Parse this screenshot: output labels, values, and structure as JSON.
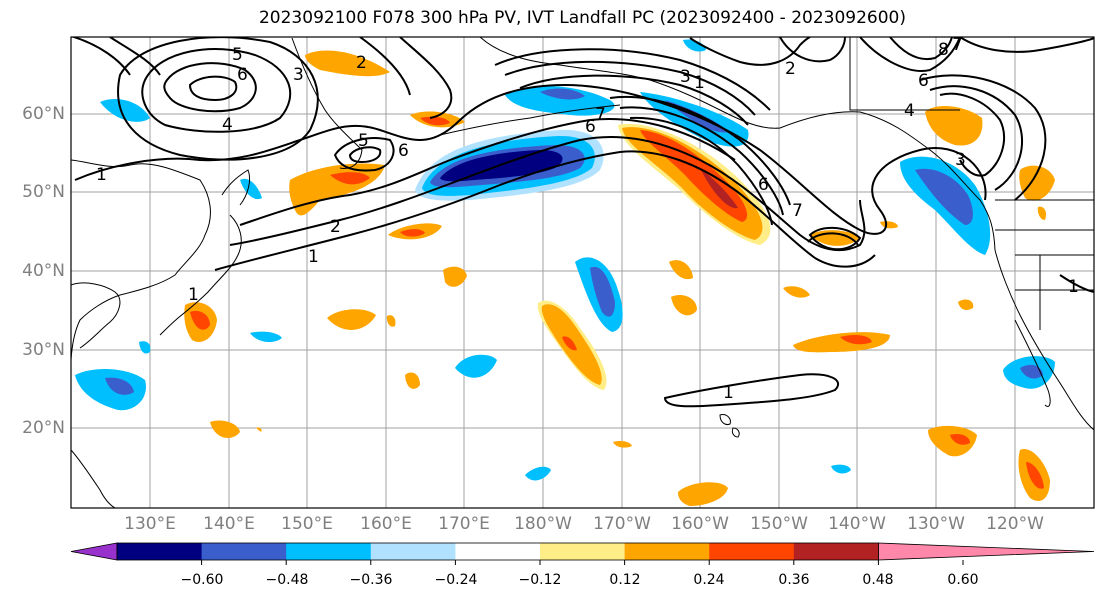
{
  "title": "2023092100 F078 300 hPa PV, IVT Landfall PC (2023092400 - 2023092600)",
  "lat_labels": [
    "60°N",
    "50°N",
    "40°N",
    "30°N",
    "20°N"
  ],
  "lon_labels": [
    "130°E",
    "140°E",
    "150°E",
    "160°E",
    "170°E",
    "180°W",
    "170°W",
    "160°W",
    "150°W",
    "140°W",
    "130°W",
    "120°W"
  ],
  "colorbar": {
    "tick_labels": [
      "−0.60",
      "−0.48",
      "−0.36",
      "−0.24",
      "−0.12",
      "0.12",
      "0.24",
      "0.36",
      "0.48",
      "0.60"
    ],
    "colors": [
      "#9932cc",
      "#000080",
      "#3a5fcd",
      "#00bfff",
      "#b0e2ff",
      "#ffffff",
      "#ffee88",
      "#ffa500",
      "#ff4500",
      "#b22222",
      "#ff88aa"
    ]
  },
  "contour_labels": [
    "5",
    "6",
    "4",
    "1",
    "2",
    "3",
    "5",
    "6",
    "1",
    "2",
    "1",
    "7",
    "6",
    "3",
    "1",
    "2",
    "8",
    "7",
    "6",
    "4",
    "3",
    "6",
    "7",
    "1",
    "1"
  ],
  "colors": {
    "neg_dark": "#000080",
    "neg_mid": "#3a5fcd",
    "neg": "#00bfff",
    "neg_light": "#b0e2ff",
    "pos_light": "#ffee88",
    "pos": "#ffa500",
    "pos_mid": "#ff4500",
    "pos_dark": "#b22222",
    "grid": "#a0a0a0",
    "coast": "#000000",
    "contour": "#000000"
  }
}
